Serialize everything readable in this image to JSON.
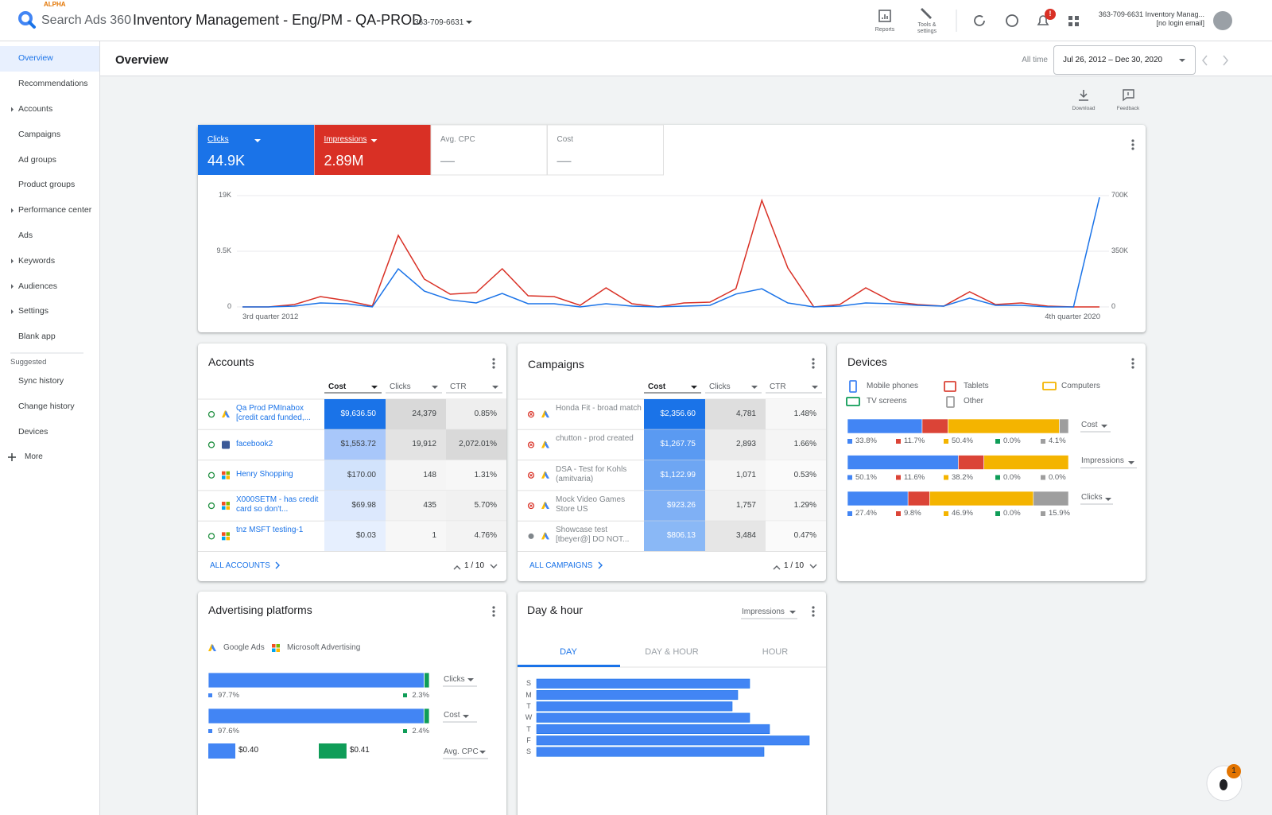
{
  "header": {
    "badge": "ALPHA",
    "product": "Search Ads 360",
    "title": "Inventory Management - Eng/PM - QA-PROD",
    "account_id": "363-709-6631",
    "reports": "Reports",
    "tools": "Tools & settings",
    "notification_badge": "!",
    "user_account": "363-709-6631 Inventory Manag...",
    "user_email": "[no login email]"
  },
  "sidebar": {
    "items": [
      {
        "label": "Overview",
        "expandable": false
      },
      {
        "label": "Recommendations",
        "expandable": false
      },
      {
        "label": "Accounts",
        "expandable": true
      },
      {
        "label": "Campaigns",
        "expandable": false
      },
      {
        "label": "Ad groups",
        "expandable": false
      },
      {
        "label": "Product groups",
        "expandable": false
      },
      {
        "label": "Performance center",
        "expandable": true
      },
      {
        "label": "Ads",
        "expandable": false
      },
      {
        "label": "Keywords",
        "expandable": true
      },
      {
        "label": "Audiences",
        "expandable": true
      },
      {
        "label": "Settings",
        "expandable": true
      },
      {
        "label": "Blank app",
        "expandable": false
      }
    ],
    "suggested_label": "Suggested",
    "suggested": [
      "Sync history",
      "Change history",
      "Devices"
    ],
    "more": "More"
  },
  "toolbar": {
    "title": "Overview",
    "range_label": "All time",
    "date_range": "Jul 26, 2012 – Dec 30, 2020",
    "download": "Download",
    "feedback": "Feedback"
  },
  "scorecards": [
    {
      "label": "Clicks",
      "value": "44.9K",
      "color": "#1a73e8"
    },
    {
      "label": "Impressions",
      "value": "2.89M",
      "color": "#d93025"
    },
    {
      "label": "Avg. CPC",
      "value": "—"
    },
    {
      "label": "Cost",
      "value": "—"
    }
  ],
  "trend": {
    "x_start_label": "3rd quarter 2012",
    "x_end_label": "4th quarter 2020",
    "ylim": [
      0,
      19000
    ],
    "yticks": [
      0,
      {
        "value": 9500,
        "label": "9.5K"
      },
      {
        "value": 19000,
        "label": "19K"
      }
    ],
    "y2lim": [
      0,
      700000
    ],
    "y2ticks": [
      0,
      {
        "value": 350000,
        "label": "350K"
      },
      {
        "value": 700000,
        "label": "700K"
      }
    ],
    "grid": true,
    "series": [
      {
        "color": "#1a73e8",
        "values": [
          0,
          0,
          140,
          680,
          540,
          0,
          6500,
          2700,
          1200,
          680,
          2300,
          540,
          540,
          0,
          540,
          140,
          0,
          140,
          270,
          2200,
          3100,
          680,
          0,
          140,
          680,
          540,
          270,
          140,
          1500,
          270,
          270,
          0,
          0,
          18700
        ]
      },
      {
        "color": "#d93025",
        "axis": "y2",
        "values": [
          0,
          0,
          15000,
          65000,
          40000,
          5000,
          450000,
          175000,
          80000,
          90000,
          240000,
          70000,
          65000,
          10000,
          120000,
          20000,
          0,
          25000,
          30000,
          115000,
          670000,
          245000,
          0,
          15000,
          120000,
          35000,
          15000,
          5000,
          95000,
          15000,
          25000,
          5000,
          0,
          0
        ]
      }
    ]
  },
  "accounts": {
    "title": "Accounts",
    "columns": [
      "Cost",
      "Clicks",
      "CTR"
    ],
    "rows": [
      [
        "Qa Prod PMInabox [credit card funded,...",
        "$9,636.50",
        "24,379",
        "0.85%"
      ],
      [
        "facebook2",
        "$1,553.72",
        "19,912",
        "2,072.01%"
      ],
      [
        "Henry Shopping",
        "$170.00",
        "148",
        "1.31%"
      ],
      [
        "X000SETM - has credit card so don't...",
        "$69.98",
        "435",
        "5.70%"
      ],
      [
        "tnz MSFT testing-1",
        "$0.03",
        "1",
        "4.76%"
      ]
    ],
    "link": "ALL ACCOUNTS",
    "pagination": "1 / 10"
  },
  "campaigns": {
    "title": "Campaigns",
    "columns": [
      "Cost",
      "Clicks",
      "CTR"
    ],
    "rows": [
      [
        "Honda Fit - broad match",
        "$2,356.60",
        "4,781",
        "1.48%"
      ],
      [
        "chutton - prod created",
        "$1,267.75",
        "2,893",
        "1.66%"
      ],
      [
        "DSA - Test for Kohls (amitvaria)",
        "$1,122.99",
        "1,071",
        "0.53%"
      ],
      [
        "Mock Video Games Store US",
        "$923.26",
        "1,757",
        "1.29%"
      ],
      [
        "Showcase test [tbeyer@] DO NOT...",
        "$806.13",
        "3,484",
        "0.47%"
      ]
    ],
    "link": "ALL CAMPAIGNS",
    "pagination": "1 / 10"
  },
  "devices": {
    "title": "Devices",
    "legend": [
      {
        "name": "Mobile phones",
        "color": "#4285f4"
      },
      {
        "name": "Tablets",
        "color": "#db4437"
      },
      {
        "name": "Computers",
        "color": "#f4b400"
      },
      {
        "name": "TV screens",
        "color": "#0f9d58"
      },
      {
        "name": "Other",
        "color": "#9e9e9e"
      }
    ],
    "rows": [
      {
        "metric": "Cost",
        "values": [
          33.8,
          11.7,
          50.4,
          0,
          4.1
        ],
        "value_labels": [
          "33.8%",
          "11.7%",
          "50.4%",
          "0.0%",
          "4.1%"
        ]
      },
      {
        "metric": "Impressions",
        "values": [
          50.1,
          11.6,
          38.2,
          0,
          0
        ],
        "value_labels": [
          "50.1%",
          "11.6%",
          "38.2%",
          "0.0%",
          "0.0%"
        ]
      },
      {
        "metric": "Clicks",
        "values": [
          27.4,
          9.8,
          46.9,
          0,
          15.9
        ],
        "value_labels": [
          "27.4%",
          "9.8%",
          "46.9%",
          "0.0%",
          "15.9%"
        ]
      }
    ]
  },
  "advertising_platforms": {
    "title": "Advertising platforms",
    "legend": [
      {
        "name": "Google Ads",
        "color": "#4285f4"
      },
      {
        "name": "Microsoft Advertising",
        "color": "#0f9d58"
      }
    ],
    "rows": [
      {
        "metric": "Clicks",
        "values": [
          97.7,
          2.3
        ],
        "value_labels": [
          "97.7%",
          "2.3%"
        ]
      },
      {
        "metric": "Cost",
        "values": [
          97.6,
          2.4
        ],
        "value_labels": [
          "97.6%",
          "2.4%"
        ]
      }
    ],
    "avg_cpc": {
      "metric": "Avg. CPC",
      "values": [
        0.4,
        0.41
      ],
      "value_labels": [
        "$0.40",
        "$0.41"
      ]
    }
  },
  "day_hour": {
    "title": "Day & hour",
    "metric": "Impressions",
    "tabs": [
      "DAY",
      "DAY & HOUR",
      "HOUR"
    ],
    "days": [
      "S",
      "M",
      "T",
      "W",
      "T",
      "F",
      "S"
    ],
    "values": [
      268,
      253,
      246,
      268,
      293,
      343,
      286
    ]
  },
  "bug_badge": "1"
}
